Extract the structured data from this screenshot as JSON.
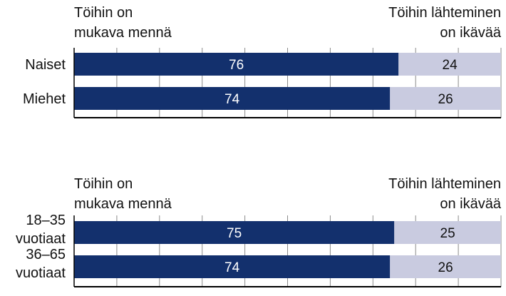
{
  "chart_data": [
    {
      "type": "bar",
      "orientation": "horizontal",
      "stacked": true,
      "left_header": [
        "Töihin on",
        "mukava mennä"
      ],
      "right_header": [
        "Töihin lähteminen",
        "on ikävää"
      ],
      "categories": [
        [
          "Naiset"
        ],
        [
          "Miehet"
        ]
      ],
      "series": [
        {
          "name": "Töihin on mukava mennä",
          "values": [
            76,
            74
          ]
        },
        {
          "name": "Töihin lähteminen on ikävää",
          "values": [
            24,
            26
          ]
        }
      ],
      "xlim": [
        0,
        100
      ],
      "gridlines": true,
      "colors": [
        "#13306d",
        "#c9cbe0"
      ]
    },
    {
      "type": "bar",
      "orientation": "horizontal",
      "stacked": true,
      "left_header": [
        "Töihin on",
        "mukava mennä"
      ],
      "right_header": [
        "Töihin lähteminen",
        "on ikävää"
      ],
      "categories": [
        [
          "18–35",
          "vuotiaat"
        ],
        [
          "36–65",
          "vuotiaat"
        ]
      ],
      "series": [
        {
          "name": "Töihin on mukava mennä",
          "values": [
            75,
            74
          ]
        },
        {
          "name": "Töihin lähteminen on ikävää",
          "values": [
            25,
            26
          ]
        }
      ],
      "xlim": [
        0,
        100
      ],
      "gridlines": true,
      "colors": [
        "#13306d",
        "#c9cbe0"
      ]
    }
  ]
}
